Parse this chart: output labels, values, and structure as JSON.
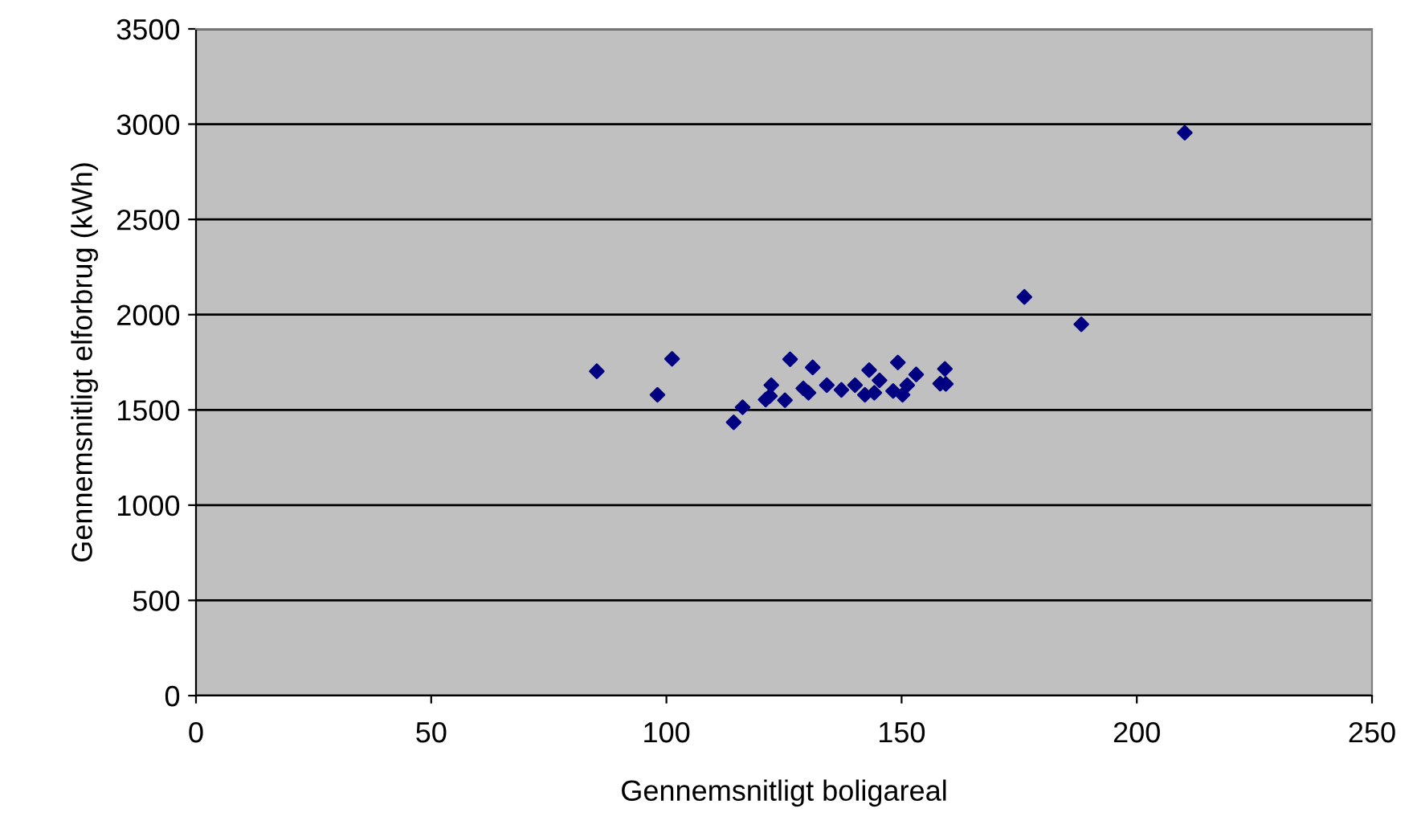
{
  "chart_data": {
    "type": "scatter",
    "xlabel": "Gennemsnitligt boligareal",
    "ylabel": "Gennemsnitligt elforbrug (kWh)",
    "x": [
      85.2,
      98.1,
      101.2,
      114.3,
      116.2,
      121.1,
      122.0,
      122.3,
      125.2,
      126.3,
      129.1,
      130.2,
      131.1,
      134.1,
      137.2,
      140.1,
      142.2,
      143.1,
      144.2,
      145.3,
      148.2,
      149.2,
      150.2,
      151.2,
      153.1,
      158.2,
      159.2,
      159.4,
      176.1,
      188.2,
      210.2
    ],
    "series": [
      {
        "color": "#000080",
        "values": [
          1703,
          1579,
          1768,
          1435,
          1514,
          1554,
          1573,
          1630,
          1551,
          1766,
          1613,
          1590,
          1723,
          1630,
          1605,
          1630,
          1579,
          1709,
          1590,
          1655,
          1599,
          1749,
          1579,
          1630,
          1686,
          1638,
          1715,
          1636,
          2093,
          1949,
          2955
        ]
      }
    ],
    "marker": "diamond",
    "xlim": [
      0,
      250
    ],
    "xticks": [
      0,
      50,
      100,
      150,
      200,
      250
    ],
    "ylim": [
      0,
      3500
    ],
    "yticks": [
      0,
      500,
      1000,
      1500,
      2000,
      2500,
      3000,
      3500
    ],
    "grid": "y"
  }
}
